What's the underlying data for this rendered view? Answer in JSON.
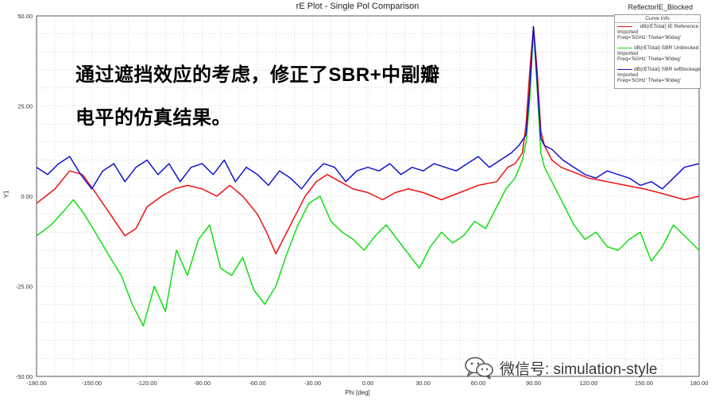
{
  "chart_data": {
    "type": "line",
    "title": "rE Plot - Single Pol Comparison",
    "plot_name": "ReflectorIE_Blocked",
    "xlabel": "Phi [deg]",
    "ylabel": "Y1",
    "xlim": [
      -180,
      180
    ],
    "ylim": [
      -50,
      50
    ],
    "x_ticks": [
      -180,
      -150,
      -120,
      -90,
      -60,
      -30,
      0,
      30,
      60,
      90,
      120,
      150,
      180
    ],
    "x_tick_labels": [
      "-180.00",
      "-150.00",
      "-120.00",
      "-90.00",
      "-60.00",
      "-30.00",
      "0.00",
      "30.00",
      "60.00",
      "90.00",
      "120.00",
      "150.00",
      "180.00"
    ],
    "y_ticks": [
      -50,
      -25,
      0,
      25,
      50
    ],
    "y_tick_labels": [
      "-50.00",
      "-25.00",
      "0.00",
      "25.00",
      "50.00"
    ],
    "grid": true,
    "legend": {
      "title": "Curve Info",
      "placement": "top-right"
    },
    "series": [
      {
        "name": "dB(rETotal) IE Reference",
        "detail": [
          "Imported",
          "Freq='5GHz' Theta='90deg'"
        ],
        "color": "#ee1111",
        "x": [
          -180,
          -170,
          -162,
          -155,
          -148,
          -140,
          -132,
          -126,
          -120,
          -112,
          -105,
          -98,
          -90,
          -82,
          -75,
          -68,
          -60,
          -55,
          -50,
          -46,
          -40,
          -34,
          -28,
          -22,
          -15,
          -8,
          0,
          8,
          15,
          22,
          30,
          40,
          50,
          60,
          70,
          76,
          80,
          84,
          86,
          88,
          90,
          92,
          94,
          96,
          100,
          105,
          110,
          120,
          130,
          140,
          150,
          158,
          165,
          172,
          180
        ],
        "values": [
          -2,
          2,
          7,
          6,
          1,
          -5,
          -11,
          -9,
          -3,
          0,
          2,
          3,
          2,
          0,
          3,
          0,
          -5,
          -10,
          -16,
          -12,
          -6,
          0,
          4,
          6,
          4,
          2,
          1,
          -1,
          1,
          2,
          1,
          -1,
          1,
          3,
          4,
          8,
          9,
          12,
          20,
          35,
          47,
          35,
          18,
          14,
          10,
          8,
          7,
          5,
          4,
          3,
          2,
          1,
          0,
          -1,
          0
        ]
      },
      {
        "name": "dB(rETotal) SBR Unblocked",
        "detail": [
          "Imported",
          "Freq='5GHz' Theta='90deg'"
        ],
        "color": "#11dd11",
        "x": [
          -180,
          -172,
          -165,
          -160,
          -154,
          -147,
          -140,
          -134,
          -128,
          -122,
          -116,
          -110,
          -104,
          -98,
          -92,
          -86,
          -80,
          -74,
          -68,
          -62,
          -56,
          -50,
          -44,
          -38,
          -32,
          -26,
          -20,
          -14,
          -8,
          -2,
          4,
          10,
          16,
          22,
          28,
          34,
          40,
          46,
          52,
          58,
          64,
          70,
          75,
          80,
          84,
          86,
          88,
          90,
          92,
          94,
          96,
          100,
          106,
          112,
          118,
          124,
          130,
          136,
          142,
          148,
          154,
          160,
          166,
          172,
          180
        ],
        "values": [
          -11,
          -8,
          -4,
          -1,
          -5,
          -11,
          -17,
          -22,
          -30,
          -36,
          -25,
          -32,
          -15,
          -22,
          -12,
          -8,
          -20,
          -22,
          -17,
          -26,
          -30,
          -25,
          -16,
          -8,
          -2,
          0,
          -7,
          -10,
          -12,
          -15,
          -11,
          -8,
          -12,
          -16,
          -20,
          -14,
          -10,
          -13,
          -11,
          -7,
          -9,
          -3,
          2,
          5,
          10,
          15,
          27,
          47,
          30,
          12,
          8,
          4,
          -2,
          -8,
          -12,
          -10,
          -14,
          -15,
          -12,
          -10,
          -18,
          -14,
          -8,
          -11,
          -15
        ]
      },
      {
        "name": "dB(rETotal) SBR w/Blockage",
        "detail": [
          "Imported",
          "Freq='5GHz' Theta='90deg'"
        ],
        "color": "#1111cc",
        "x": [
          -180,
          -174,
          -168,
          -162,
          -156,
          -150,
          -144,
          -138,
          -132,
          -126,
          -120,
          -114,
          -108,
          -102,
          -96,
          -90,
          -84,
          -78,
          -72,
          -66,
          -60,
          -54,
          -48,
          -42,
          -36,
          -30,
          -24,
          -18,
          -12,
          -6,
          0,
          6,
          12,
          18,
          24,
          30,
          36,
          42,
          48,
          54,
          60,
          66,
          72,
          78,
          82,
          86,
          88,
          90,
          92,
          94,
          96,
          100,
          106,
          112,
          118,
          124,
          130,
          136,
          142,
          148,
          154,
          160,
          166,
          172,
          180
        ],
        "values": [
          8,
          6,
          9,
          11,
          6,
          2,
          7,
          9,
          4,
          8,
          10,
          6,
          9,
          4,
          8,
          9,
          6,
          10,
          4,
          8,
          6,
          3,
          7,
          5,
          2,
          6,
          9,
          8,
          4,
          7,
          8,
          7,
          9,
          6,
          8,
          7,
          9,
          8,
          7,
          9,
          11,
          8,
          10,
          12,
          14,
          17,
          30,
          47,
          32,
          16,
          14,
          13,
          10,
          8,
          6,
          5,
          7,
          6,
          5,
          3,
          4,
          2,
          5,
          8,
          9
        ]
      }
    ],
    "annotation": {
      "line1": "通过遮挡效应的考虑，修正了SBR+中副瓣",
      "line2": "电平的仿真结果。"
    }
  },
  "watermark": {
    "text": "微信号: simulation-style",
    "icon": "wechat-logo-icon"
  }
}
